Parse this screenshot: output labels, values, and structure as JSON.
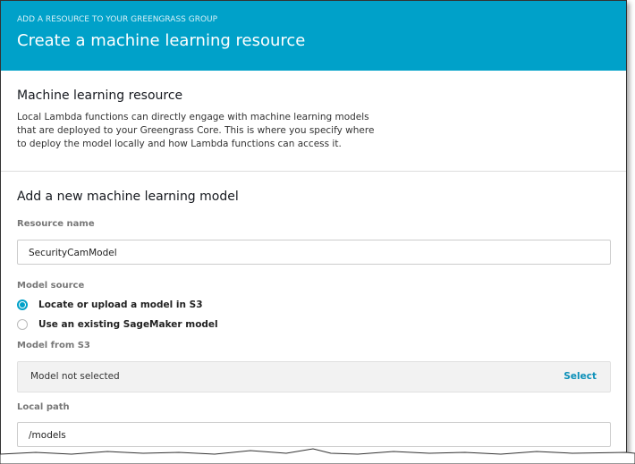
{
  "header": {
    "eyebrow": "ADD A RESOURCE TO YOUR GREENGRASS GROUP",
    "title": "Create a machine learning resource"
  },
  "intro": {
    "heading": "Machine learning resource",
    "description": "Local Lambda functions can directly engage with machine learning models that are deployed to your Greengrass Core. This is where you specify where to deploy the model locally and how Lambda functions can access it."
  },
  "form": {
    "heading": "Add a new machine learning model",
    "resource_name_label": "Resource name",
    "resource_name_value": "SecurityCamModel",
    "model_source_label": "Model source",
    "model_source_options": [
      {
        "label": "Locate or upload a model in S3",
        "selected": true
      },
      {
        "label": "Use an existing SageMaker model",
        "selected": false
      }
    ],
    "model_from_s3_label": "Model from S3",
    "model_from_s3_value": "Model not selected",
    "select_label": "Select",
    "local_path_label": "Local path",
    "local_path_value": "/models"
  },
  "colors": {
    "accent": "#00a1c9"
  }
}
